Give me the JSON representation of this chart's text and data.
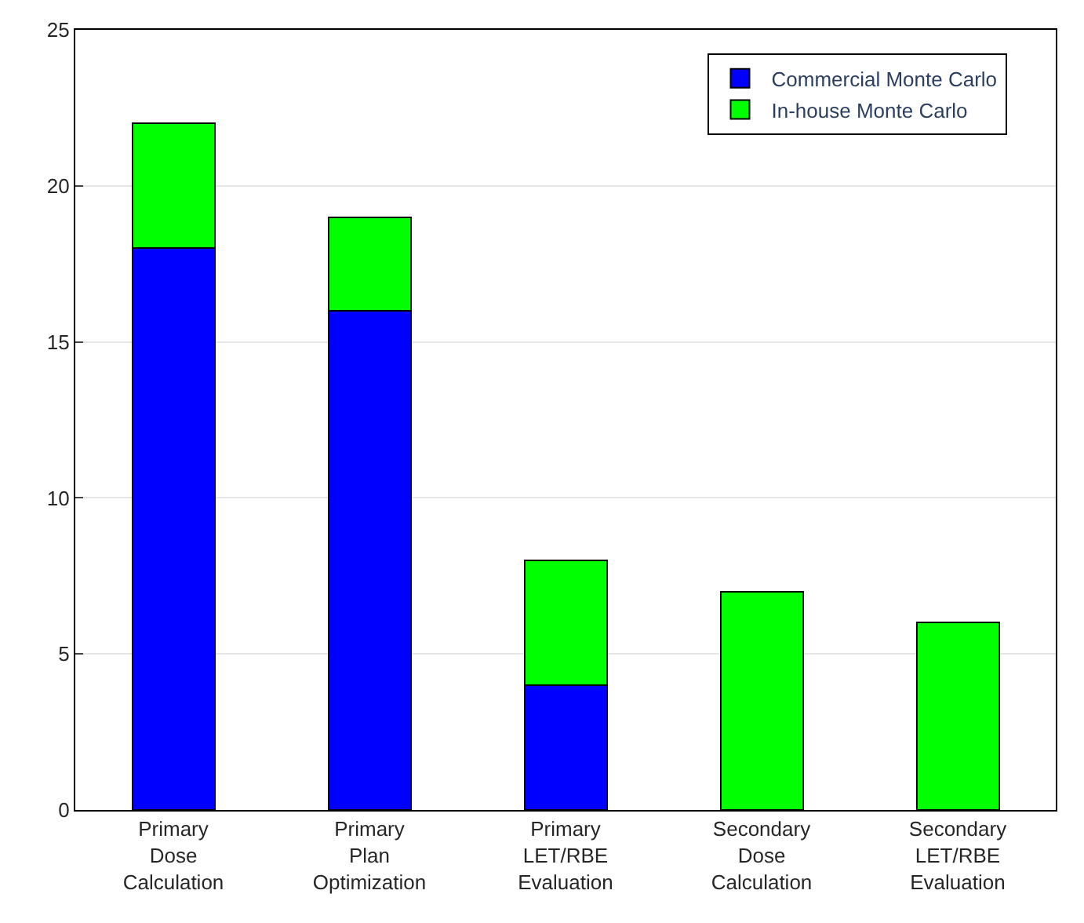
{
  "chart_data": {
    "type": "bar",
    "stacked": true,
    "categories": [
      "Primary Dose Calculation",
      "Primary Plan Optimization",
      "Primary LET/RBE Evaluation",
      "Secondary Dose Calculation",
      "Secondary LET/RBE Evaluation"
    ],
    "series": [
      {
        "name": "Commercial Monte Carlo",
        "color": "#0000ff",
        "values": [
          18,
          16,
          4,
          0,
          0
        ]
      },
      {
        "name": "In-house Monte Carlo",
        "color": "#00ff00",
        "values": [
          4,
          3,
          4,
          7,
          6
        ]
      }
    ],
    "ylim": [
      0,
      25
    ],
    "yticks": [
      0,
      5,
      10,
      15,
      20,
      25
    ],
    "grid": "y",
    "legend": "top right"
  }
}
